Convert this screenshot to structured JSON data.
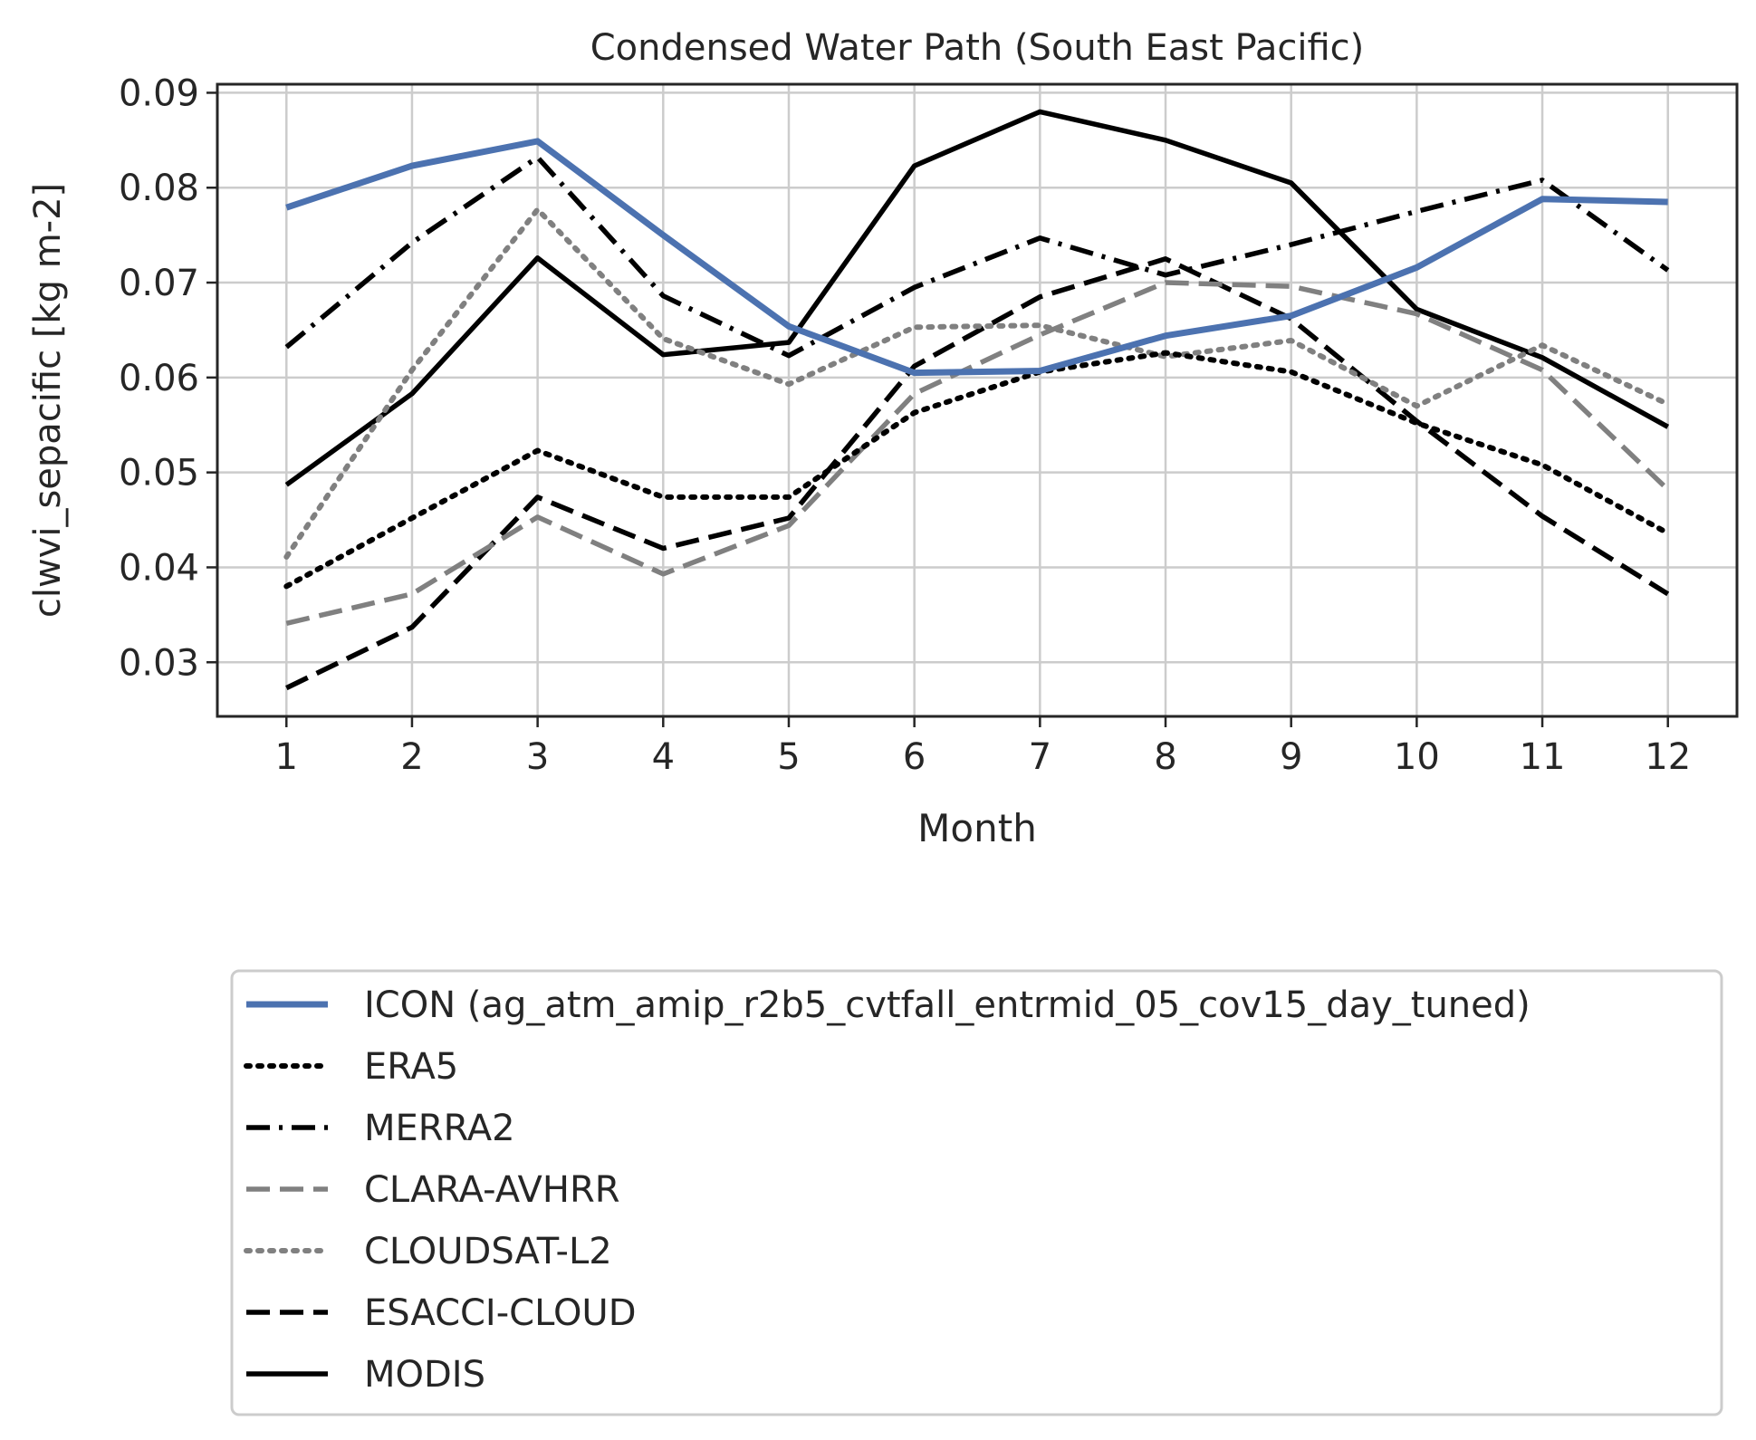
{
  "chart_data": {
    "type": "line",
    "title": "Condensed Water Path (South East Pacific)",
    "xlabel": "Month",
    "ylabel": "clwvi_sepacific [kg m-2]",
    "x": [
      1,
      2,
      3,
      4,
      5,
      6,
      7,
      8,
      9,
      10,
      11,
      12
    ],
    "xticks": [
      "1",
      "2",
      "3",
      "4",
      "5",
      "6",
      "7",
      "8",
      "9",
      "10",
      "11",
      "12"
    ],
    "yticks": [
      "0.03",
      "0.04",
      "0.05",
      "0.06",
      "0.07",
      "0.08",
      "0.09"
    ],
    "xlim": [
      0.45,
      12.55
    ],
    "ylim": [
      0.0243,
      0.0909
    ],
    "grid": true,
    "legend_position": "below plot",
    "series": [
      {
        "name": "ICON (ag_atm_amip_r2b5_cvtfall_entrmid_05_cov15_day_tuned)",
        "color": "#4c72b0",
        "style": "solid",
        "width": "thick",
        "values": [
          0.0779,
          0.0823,
          0.0849,
          0.075,
          0.0654,
          0.0605,
          0.0607,
          0.0644,
          0.0665,
          0.0716,
          0.0788,
          0.0785
        ]
      },
      {
        "name": "ERA5",
        "color": "#000000",
        "style": "dotted",
        "width": "normal",
        "values": [
          0.038,
          0.0452,
          0.0523,
          0.0474,
          0.0474,
          0.0563,
          0.0606,
          0.0626,
          0.0606,
          0.0552,
          0.0508,
          0.0436
        ]
      },
      {
        "name": "MERRA2",
        "color": "#000000",
        "style": "dashdot",
        "width": "normal",
        "values": [
          0.0632,
          0.0742,
          0.0832,
          0.0686,
          0.0623,
          0.0695,
          0.0747,
          0.0708,
          0.074,
          0.0775,
          0.0808,
          0.0713
        ]
      },
      {
        "name": "CLARA-AVHRR",
        "color": "#808080",
        "style": "dashed",
        "width": "normal",
        "values": [
          0.0341,
          0.0372,
          0.0453,
          0.0393,
          0.0444,
          0.0583,
          0.0645,
          0.07,
          0.0696,
          0.0667,
          0.0608,
          0.0482
        ]
      },
      {
        "name": "CLOUDSAT-L2",
        "color": "#808080",
        "style": "dotted",
        "width": "normal",
        "values": [
          0.0411,
          0.0608,
          0.0777,
          0.0641,
          0.0593,
          0.0653,
          0.0655,
          0.0622,
          0.0639,
          0.057,
          0.0634,
          0.0572
        ]
      },
      {
        "name": "ESACCI-CLOUD",
        "color": "#000000",
        "style": "dashed",
        "width": "normal",
        "values": [
          0.0273,
          0.0337,
          0.0474,
          0.042,
          0.0452,
          0.0612,
          0.0685,
          0.0725,
          0.0662,
          0.0554,
          0.0454,
          0.0372
        ]
      },
      {
        "name": "MODIS",
        "color": "#000000",
        "style": "solid",
        "width": "normal",
        "values": [
          0.0487,
          0.0583,
          0.0726,
          0.0624,
          0.0637,
          0.0823,
          0.088,
          0.085,
          0.0805,
          0.0672,
          0.0621,
          0.0548
        ]
      }
    ]
  }
}
